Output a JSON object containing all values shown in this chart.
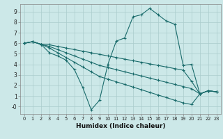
{
  "xlabel": "Humidex (Indice chaleur)",
  "background_color": "#cce8e8",
  "grid_color": "#aacccc",
  "line_color": "#1a6b6b",
  "xlim": [
    -0.5,
    23.5
  ],
  "ylim": [
    -0.7,
    9.7
  ],
  "xticks": [
    0,
    1,
    2,
    3,
    4,
    5,
    6,
    7,
    8,
    9,
    10,
    11,
    12,
    13,
    14,
    15,
    16,
    17,
    18,
    19,
    20,
    21,
    22,
    23
  ],
  "yticks": [
    0,
    1,
    2,
    3,
    4,
    5,
    6,
    7,
    8,
    9
  ],
  "ytick_labels": [
    "-0",
    "1",
    "2",
    "3",
    "4",
    "5",
    "6",
    "7",
    "8",
    "9"
  ],
  "line1_x": [
    0,
    1,
    2,
    3,
    4,
    5,
    6,
    7,
    8,
    9,
    10,
    11,
    12,
    13,
    14,
    15,
    16,
    17,
    18,
    19,
    20,
    21,
    22,
    23
  ],
  "line1_y": [
    6.0,
    6.15,
    5.9,
    5.1,
    4.8,
    4.4,
    3.5,
    1.8,
    -0.3,
    0.6,
    4.0,
    6.2,
    6.5,
    8.5,
    8.7,
    9.3,
    8.7,
    8.1,
    7.8,
    3.9,
    4.0,
    1.2,
    1.5,
    1.4
  ],
  "line2_x": [
    0,
    1,
    2,
    3,
    4,
    5,
    6,
    7,
    8,
    9,
    10,
    11,
    12,
    13,
    14,
    15,
    16,
    17,
    18,
    19,
    20,
    21,
    22,
    23
  ],
  "line2_y": [
    6.0,
    6.15,
    5.9,
    5.85,
    5.7,
    5.55,
    5.4,
    5.25,
    5.1,
    4.95,
    4.8,
    4.65,
    4.5,
    4.35,
    4.2,
    4.05,
    3.9,
    3.75,
    3.6,
    3.45,
    2.4,
    1.2,
    1.5,
    1.4
  ],
  "line3_x": [
    0,
    1,
    2,
    3,
    4,
    5,
    6,
    7,
    8,
    9,
    10,
    11,
    12,
    13,
    14,
    15,
    16,
    17,
    18,
    19,
    20,
    21,
    22,
    23
  ],
  "line3_y": [
    6.0,
    6.15,
    5.9,
    5.7,
    5.4,
    5.1,
    4.8,
    4.5,
    4.2,
    3.9,
    3.7,
    3.5,
    3.3,
    3.1,
    2.9,
    2.7,
    2.5,
    2.3,
    2.1,
    1.9,
    1.7,
    1.2,
    1.5,
    1.4
  ],
  "line4_x": [
    0,
    1,
    2,
    3,
    4,
    5,
    6,
    7,
    8,
    9,
    10,
    11,
    12,
    13,
    14,
    15,
    16,
    17,
    18,
    19,
    20,
    21,
    22,
    23
  ],
  "line4_y": [
    6.0,
    6.15,
    5.9,
    5.55,
    5.1,
    4.65,
    4.2,
    3.75,
    3.3,
    2.85,
    2.6,
    2.35,
    2.1,
    1.85,
    1.6,
    1.35,
    1.1,
    0.85,
    0.6,
    0.35,
    0.2,
    1.2,
    1.5,
    1.4
  ]
}
